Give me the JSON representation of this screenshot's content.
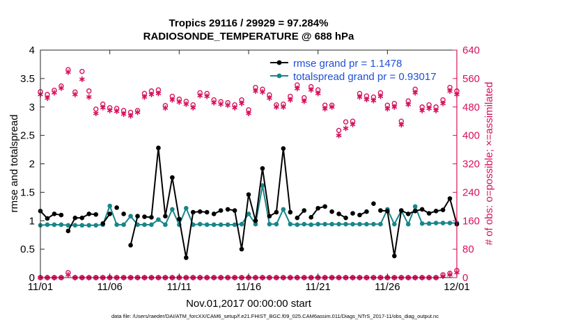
{
  "chart_data": {
    "type": "line",
    "title": "Tropics 29116 / 29929 = 97.284%",
    "subtitle": "RADIOSONDE_TEMPERATURE @ 688 hPa",
    "xlabel": "Nov.01,2017 00:00:00 start",
    "ylabel": "rmse and totalspread",
    "y2label": "# of obs: o=possible; ×=assimilated",
    "footnote": "data file: /Users/raeder/DAI/ATM_forcXX/CAM6_setup/f.e21.FHIST_BGC.f09_025.CAM6assim.011/Diags_NTrS_2017-11/obs_diag_output.nc",
    "xlim": [
      0,
      60
    ],
    "ylim": [
      0,
      4
    ],
    "y2lim": [
      0,
      640
    ],
    "x_ticks": [
      0,
      10,
      20,
      30,
      40,
      50,
      60
    ],
    "x_tick_labels": [
      "11/01",
      "11/06",
      "11/11",
      "11/16",
      "11/21",
      "11/26",
      "12/01"
    ],
    "y_tick_labels": [
      "0",
      "0.5",
      "1",
      "1.5",
      "2",
      "2.5",
      "3",
      "3.5",
      "4"
    ],
    "y_ticks": [
      0,
      0.5,
      1,
      1.5,
      2,
      2.5,
      3,
      3.5,
      4
    ],
    "y2_tick_labels": [
      "0",
      "80",
      "160",
      "240",
      "320",
      "400",
      "480",
      "560",
      "640"
    ],
    "y2_ticks": [
      0,
      80,
      160,
      240,
      320,
      400,
      480,
      560,
      640
    ],
    "legend": {
      "position": "top-right"
    },
    "series": [
      {
        "name": "rmse grand pr = 1.1478",
        "color": "#000000",
        "axis": "left",
        "x": [
          0,
          1,
          2,
          3,
          4,
          5,
          6,
          7,
          8,
          9,
          10,
          11,
          12,
          13,
          14,
          15,
          16,
          17,
          18,
          19,
          20,
          21,
          22,
          23,
          24,
          25,
          26,
          27,
          28,
          29,
          30,
          31,
          32,
          33,
          34,
          35,
          36,
          37,
          38,
          39,
          40,
          41,
          42,
          43,
          44,
          45,
          46,
          47,
          48,
          49,
          50,
          51,
          52,
          53,
          54,
          55,
          56,
          57,
          58,
          59,
          60
        ],
        "values": [
          1.17,
          1.04,
          1.12,
          1.1,
          0.82,
          1.05,
          1.05,
          1.12,
          1.11,
          0.95,
          1.12,
          1.23,
          1.12,
          0.57,
          1.08,
          1.07,
          1.06,
          2.28,
          1.08,
          1.76,
          1.03,
          0.35,
          1.15,
          1.16,
          1.15,
          1.12,
          1.18,
          1.2,
          1.18,
          0.5,
          1.46,
          1.0,
          1.92,
          1.08,
          1.15,
          2.27,
          1.15,
          1.05,
          1.18,
          1.06,
          1.22,
          1.25,
          1.16,
          1.12,
          1.05,
          1.13,
          1.1,
          1.16,
          1.3,
          1.18,
          1.17,
          0.38,
          1.18,
          1.12,
          1.17,
          1.2,
          1.13,
          1.17,
          1.19,
          1.39,
          0.94
        ],
        "gaps_after": [
          3,
          8,
          10,
          11,
          12,
          14,
          24,
          26,
          36,
          38,
          41,
          42,
          44,
          45,
          47,
          48
        ]
      },
      {
        "name": "totalspread grand pr = 0.93017",
        "color": "#17868a",
        "axis": "left",
        "x": [
          0,
          1,
          2,
          3,
          4,
          5,
          6,
          7,
          8,
          9,
          10,
          11,
          12,
          13,
          14,
          15,
          16,
          17,
          18,
          19,
          20,
          21,
          22,
          23,
          24,
          25,
          26,
          27,
          28,
          29,
          30,
          31,
          32,
          33,
          34,
          35,
          36,
          37,
          38,
          39,
          40,
          41,
          42,
          43,
          44,
          45,
          46,
          47,
          48,
          49,
          50,
          51,
          52,
          53,
          54,
          55,
          56,
          57,
          58,
          59,
          60
        ],
        "values": [
          0.92,
          0.93,
          0.93,
          0.93,
          0.92,
          0.92,
          0.92,
          0.92,
          0.92,
          0.93,
          1.26,
          0.93,
          0.93,
          1.08,
          0.93,
          0.93,
          0.93,
          1.02,
          0.93,
          1.2,
          0.93,
          1.22,
          0.93,
          0.94,
          0.93,
          0.93,
          0.93,
          0.93,
          0.93,
          0.94,
          1.12,
          0.94,
          1.62,
          0.94,
          0.94,
          1.2,
          0.94,
          0.93,
          0.94,
          0.93,
          0.94,
          0.94,
          0.94,
          0.94,
          0.94,
          0.94,
          0.94,
          0.94,
          0.94,
          0.94,
          1.2,
          0.94,
          1.18,
          0.94,
          1.25,
          0.95,
          0.95,
          0.96,
          0.96,
          0.96,
          0.96
        ],
        "gaps_after": []
      },
      {
        "name": "possible (rmse)",
        "marker": "o",
        "color": "#d6105c",
        "axis": "right",
        "x": [
          0,
          1,
          2,
          3,
          4,
          5,
          6,
          7,
          8,
          9,
          10,
          11,
          12,
          13,
          14,
          15,
          16,
          17,
          18,
          19,
          20,
          21,
          22,
          23,
          24,
          25,
          26,
          27,
          28,
          29,
          30,
          31,
          32,
          33,
          34,
          35,
          36,
          37,
          38,
          39,
          40,
          41,
          42,
          43,
          44,
          45,
          46,
          47,
          48,
          49,
          50,
          51,
          52,
          53,
          54,
          55,
          56,
          57,
          58,
          59,
          60
        ],
        "values": [
          523,
          515,
          527,
          539,
          585,
          522,
          580,
          525,
          474,
          488,
          478,
          476,
          470,
          465,
          470,
          518,
          525,
          528,
          484,
          510,
          502,
          496,
          486,
          520,
          518,
          500,
          495,
          492,
          486,
          500,
          472,
          535,
          530,
          514,
          486,
          488,
          510,
          542,
          506,
          537,
          528,
          485,
          485,
          414,
          438,
          440,
          518,
          511,
          508,
          520,
          485,
          490,
          440,
          497,
          530,
          480,
          486,
          480,
          500,
          535,
          525
        ]
      },
      {
        "name": "assimilated (rmse)",
        "marker": "*",
        "color": "#d6105c",
        "axis": "right",
        "x": [
          0,
          1,
          2,
          3,
          4,
          5,
          6,
          7,
          8,
          9,
          10,
          11,
          12,
          13,
          14,
          15,
          16,
          17,
          18,
          19,
          20,
          21,
          22,
          23,
          24,
          25,
          26,
          27,
          28,
          29,
          30,
          31,
          32,
          33,
          34,
          35,
          36,
          37,
          38,
          39,
          40,
          41,
          42,
          43,
          44,
          45,
          46,
          47,
          48,
          49,
          50,
          51,
          52,
          53,
          54,
          55,
          56,
          57,
          58,
          59,
          60
        ],
        "values": [
          515,
          505,
          520,
          533,
          578,
          515,
          558,
          508,
          462,
          478,
          470,
          468,
          460,
          455,
          465,
          508,
          515,
          518,
          477,
          500,
          494,
          488,
          478,
          512,
          510,
          492,
          488,
          485,
          478,
          490,
          462,
          525,
          522,
          505,
          480,
          480,
          500,
          532,
          496,
          528,
          518,
          475,
          480,
          400,
          420,
          431,
          508,
          501,
          498,
          510,
          475,
          480,
          430,
          487,
          520,
          470,
          476,
          470,
          490,
          525,
          515
        ]
      },
      {
        "name": "possible (spread)",
        "marker": "o",
        "color": "#d6105c",
        "axis": "right",
        "x": [
          0,
          1,
          2,
          3,
          4,
          5,
          6,
          7,
          8,
          9,
          10,
          11,
          12,
          13,
          14,
          15,
          16,
          17,
          18,
          19,
          20,
          21,
          22,
          23,
          24,
          25,
          26,
          27,
          28,
          29,
          30,
          31,
          32,
          33,
          34,
          35,
          36,
          37,
          38,
          39,
          40,
          41,
          42,
          43,
          44,
          45,
          46,
          47,
          48,
          49,
          50,
          51,
          52,
          53,
          54,
          55,
          56,
          57,
          58,
          59,
          60
        ],
        "values": [
          0,
          0,
          0,
          0,
          14,
          0,
          0,
          0,
          0,
          0,
          0,
          0,
          0,
          0,
          0,
          0,
          0,
          0,
          0,
          0,
          0,
          0,
          0,
          0,
          0,
          0,
          0,
          0,
          0,
          0,
          0,
          0,
          0,
          0,
          0,
          0,
          0,
          0,
          0,
          0,
          0,
          0,
          0,
          0,
          0,
          0,
          0,
          0,
          0,
          0,
          0,
          0,
          0,
          0,
          0,
          0,
          0,
          0,
          8,
          12,
          20
        ]
      },
      {
        "name": "assimilated (spread)",
        "marker": "*",
        "color": "#d6105c",
        "axis": "right",
        "x": [
          0,
          1,
          2,
          3,
          4,
          5,
          6,
          7,
          8,
          9,
          10,
          11,
          12,
          13,
          14,
          15,
          16,
          17,
          18,
          19,
          20,
          21,
          22,
          23,
          24,
          25,
          26,
          27,
          28,
          29,
          30,
          31,
          32,
          33,
          34,
          35,
          36,
          37,
          38,
          39,
          40,
          41,
          42,
          43,
          44,
          45,
          46,
          47,
          48,
          49,
          50,
          51,
          52,
          53,
          54,
          55,
          56,
          57,
          58,
          59,
          60
        ],
        "values": [
          0,
          0,
          0,
          0,
          8,
          0,
          0,
          0,
          0,
          0,
          0,
          0,
          0,
          0,
          0,
          0,
          0,
          0,
          0,
          0,
          0,
          0,
          0,
          0,
          0,
          0,
          0,
          0,
          0,
          0,
          0,
          0,
          0,
          0,
          0,
          0,
          0,
          0,
          0,
          0,
          0,
          0,
          0,
          0,
          0,
          0,
          0,
          0,
          0,
          0,
          0,
          0,
          0,
          0,
          0,
          0,
          0,
          0,
          4,
          8,
          14
        ]
      }
    ]
  }
}
